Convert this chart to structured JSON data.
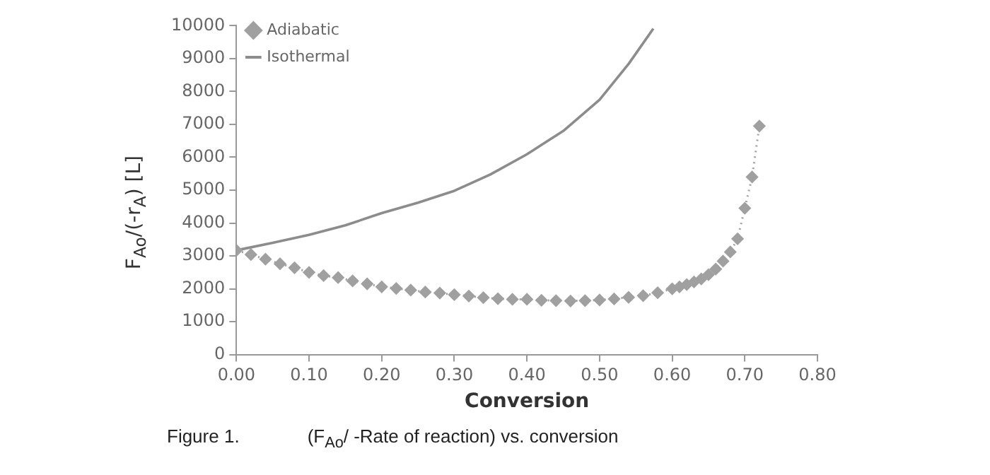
{
  "chart_data": {
    "type": "line",
    "xlabel": "Conversion",
    "ylabel": "F$_{Ao}$/(-r$_{A}$) [L]",
    "annotations": [
      "Figure 1.",
      "(F$_{Ao}$/ -Rate of reaction) vs. conversion"
    ],
    "xlim": [
      0,
      0.8
    ],
    "xticks": [
      {
        "value": 0,
        "label": "0.00"
      },
      {
        "value": 0.1,
        "label": "0.10"
      },
      {
        "value": 0.2,
        "label": "0.20"
      },
      {
        "value": 0.3,
        "label": "0.30"
      },
      {
        "value": 0.4,
        "label": "0.40"
      },
      {
        "value": 0.5,
        "label": "0.50"
      },
      {
        "value": 0.6,
        "label": "0.60"
      },
      {
        "value": 0.7,
        "label": "0.70"
      },
      {
        "value": 0.8,
        "label": "0.80"
      }
    ],
    "ylim": [
      0,
      10000
    ],
    "yticks": [
      0,
      1000,
      2000,
      3000,
      4000,
      5000,
      6000,
      7000,
      8000,
      9000,
      10000
    ],
    "grid": false,
    "legend": "top left",
    "series": [
      {
        "name": "Adiabatic",
        "color": "#a0a0a0",
        "marker": "diamond",
        "line_style": "dotted",
        "x": [
          0,
          0.02,
          0.04,
          0.06,
          0.08,
          0.1,
          0.12,
          0.14,
          0.16,
          0.18,
          0.2,
          0.22,
          0.24,
          0.26,
          0.28,
          0.3,
          0.32,
          0.34,
          0.36,
          0.38,
          0.4,
          0.42,
          0.44,
          0.46,
          0.48,
          0.5,
          0.52,
          0.54,
          0.56,
          0.58,
          0.6,
          0.61,
          0.62,
          0.63,
          0.64,
          0.65,
          0.66,
          0.67,
          0.68,
          0.69,
          0.7,
          0.71,
          0.72
        ],
        "values": [
          3170,
          3040,
          2900,
          2760,
          2640,
          2500,
          2400,
          2340,
          2240,
          2150,
          2060,
          2010,
          1960,
          1900,
          1870,
          1820,
          1780,
          1730,
          1700,
          1680,
          1680,
          1650,
          1640,
          1630,
          1640,
          1660,
          1690,
          1740,
          1790,
          1880,
          2000,
          2060,
          2130,
          2210,
          2300,
          2430,
          2600,
          2840,
          3120,
          3520,
          4450,
          5400,
          6950
        ]
      },
      {
        "name": "Isothermal",
        "color": "#8c8c8c",
        "marker": "none",
        "line_style": "solid",
        "x": [
          0,
          0.05,
          0.1,
          0.15,
          0.2,
          0.25,
          0.3,
          0.35,
          0.4,
          0.45,
          0.5,
          0.54,
          0.574
        ],
        "values": [
          3170,
          3400,
          3640,
          3930,
          4300,
          4620,
          4980,
          5480,
          6090,
          6800,
          7750,
          8840,
          9910
        ]
      }
    ]
  }
}
